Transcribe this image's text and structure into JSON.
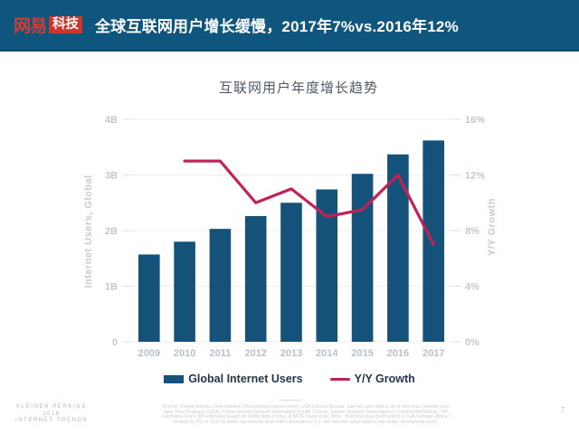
{
  "header": {
    "logo": {
      "part1": "网易",
      "part2": "科技"
    },
    "title": "全球互联网用户增长缓慢，2017年7%vs.2016年12%"
  },
  "chart_data": {
    "type": "bar",
    "subtype": "bar+line combo, dual axis",
    "title": "互联网用户年度增长趋势",
    "categories": [
      "2009",
      "2010",
      "2011",
      "2012",
      "2013",
      "2014",
      "2015",
      "2016",
      "2017"
    ],
    "series": [
      {
        "name": "Global Internet Users",
        "type": "bar",
        "axis": "left",
        "unit": "billions",
        "color": "#14527A",
        "values": [
          1.57,
          1.8,
          2.03,
          2.26,
          2.5,
          2.74,
          3.02,
          3.37,
          3.62
        ]
      },
      {
        "name": "Y/Y Growth",
        "type": "line",
        "axis": "right",
        "unit": "%",
        "color": "#C32055",
        "values": [
          null,
          13,
          13,
          10,
          11,
          9,
          9.5,
          12,
          7
        ]
      }
    ],
    "left_axis": {
      "label": "Internet Users, Global",
      "min": 0,
      "max": 4,
      "ticks": [
        "0",
        "1B",
        "2B",
        "3B",
        "4B"
      ]
    },
    "right_axis": {
      "label": "Y/Y Growth",
      "min": 0,
      "max": 16,
      "ticks": [
        "0%",
        "4%",
        "8%",
        "12%",
        "16%"
      ]
    },
    "grid": true,
    "legend_position": "bottom"
  },
  "footer": {
    "brand_lines": [
      "KLEINER PERKINS",
      "2018",
      "INTERNET TRENDS"
    ],
    "source_lines": [
      "Source: United Nations / International Telecommunications Union, USA Census Bureau. Internet user data is as of mid-year. Internet user",
      "data: Pew Research (USA), China Internet Network Information Center (China), Islamic Republic News Agency / InternetWorldStats / KP",
      "estimates (Iran), KP estimates based on IAMAI data (India), & APJII (Indonesia).  Note: Historical data (particularly in Sub-Saharan Africa)",
      "revised by ITU in 2017 to better account for dual-SIM subscriptions (i.e. two internet subscriptions per single smartphone user)."
    ],
    "page_number": "7"
  }
}
